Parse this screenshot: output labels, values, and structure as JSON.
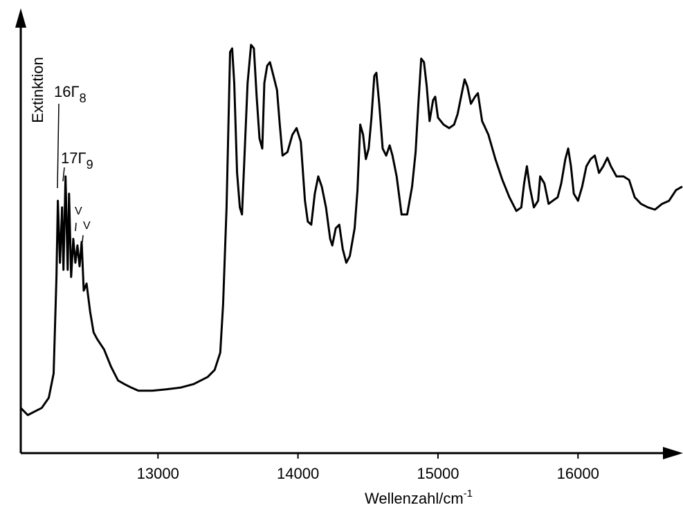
{
  "chart_data": {
    "type": "line",
    "xlabel": {
      "text": "Wellenzahl/cm",
      "sup": "-1"
    },
    "ylabel": "Extinktion",
    "annotations": [
      {
        "text": "16Γ",
        "sub": "8"
      },
      {
        "text": "17Γ",
        "sub": "9"
      },
      {
        "text": "V"
      },
      {
        "text": "V"
      }
    ],
    "color": "#000000",
    "xlim": [
      12020,
      16750
    ],
    "ylim": [
      0,
      100
    ],
    "xticks": [
      13000,
      14000,
      15000,
      16000
    ],
    "x": [
      12020,
      12070,
      12120,
      12170,
      12220,
      12255,
      12275,
      12285,
      12300,
      12315,
      12325,
      12340,
      12355,
      12365,
      12380,
      12395,
      12410,
      12425,
      12440,
      12455,
      12470,
      12490,
      12515,
      12540,
      12565,
      12615,
      12665,
      12715,
      12760,
      12810,
      12860,
      12960,
      13060,
      13160,
      13255,
      13355,
      13405,
      13445,
      13465,
      13490,
      13515,
      13530,
      13545,
      13565,
      13585,
      13600,
      13615,
      13640,
      13665,
      13685,
      13705,
      13725,
      13745,
      13760,
      13780,
      13800,
      13825,
      13850,
      13870,
      13890,
      13925,
      13960,
      13990,
      14020,
      14050,
      14070,
      14095,
      14120,
      14145,
      14170,
      14200,
      14230,
      14245,
      14270,
      14295,
      14320,
      14345,
      14370,
      14405,
      14425,
      14445,
      14465,
      14485,
      14505,
      14525,
      14545,
      14560,
      14580,
      14605,
      14630,
      14655,
      14675,
      14705,
      14740,
      14780,
      14815,
      14840,
      14860,
      14880,
      14900,
      14920,
      14940,
      14965,
      14980,
      15000,
      15040,
      15080,
      15115,
      15140,
      15165,
      15190,
      15210,
      15235,
      15265,
      15285,
      15315,
      15360,
      15410,
      15460,
      15510,
      15560,
      15595,
      15615,
      15635,
      15655,
      15685,
      15715,
      15730,
      15760,
      15790,
      15820,
      15855,
      15880,
      15910,
      15930,
      15950,
      15970,
      16000,
      16030,
      16060,
      16090,
      16120,
      16150,
      16180,
      16210,
      16235,
      16275,
      16325,
      16365,
      16405,
      16450,
      16500,
      16550,
      16600,
      16650,
      16700,
      16745
    ],
    "values": [
      10.2,
      8.6,
      9.4,
      10.2,
      12.5,
      18.0,
      39.8,
      57.0,
      43.0,
      55.5,
      41.4,
      62.5,
      41.4,
      58.6,
      39.8,
      48.4,
      43.0,
      46.9,
      42.2,
      47.7,
      36.7,
      38.3,
      32.0,
      27.3,
      25.8,
      23.4,
      19.5,
      16.4,
      15.6,
      14.8,
      14.1,
      14.1,
      14.4,
      14.8,
      15.6,
      17.2,
      18.8,
      22.7,
      33.6,
      55.5,
      90.6,
      91.4,
      83.6,
      63.3,
      55.5,
      53.9,
      64.8,
      83.6,
      92.2,
      91.4,
      80.5,
      71.1,
      68.8,
      83.6,
      87.5,
      88.3,
      85.2,
      82.0,
      74.2,
      67.2,
      68.0,
      71.9,
      73.4,
      70.3,
      57.0,
      52.3,
      51.6,
      58.6,
      62.5,
      60.2,
      55.5,
      48.4,
      46.9,
      50.8,
      51.6,
      46.1,
      43.0,
      44.5,
      50.8,
      59.4,
      74.2,
      71.9,
      66.4,
      68.8,
      75.8,
      85.2,
      85.9,
      78.9,
      68.8,
      67.2,
      69.5,
      67.2,
      62.5,
      53.9,
      53.9,
      60.2,
      68.0,
      78.9,
      89.1,
      88.3,
      82.8,
      75.0,
      79.7,
      80.5,
      75.8,
      74.2,
      73.4,
      74.2,
      76.6,
      80.5,
      84.4,
      82.8,
      78.9,
      80.5,
      81.3,
      75.0,
      71.9,
      66.4,
      61.7,
      57.8,
      54.7,
      55.5,
      60.9,
      64.8,
      60.2,
      55.5,
      57.0,
      62.5,
      60.9,
      56.3,
      57.0,
      57.8,
      60.9,
      66.4,
      68.8,
      64.8,
      58.6,
      57.0,
      60.2,
      64.8,
      66.4,
      67.2,
      63.3,
      64.8,
      66.7,
      64.8,
      62.5,
      62.5,
      61.7,
      57.8,
      56.3,
      55.5,
      55.0,
      56.3,
      57.0,
      59.4,
      60.2
    ]
  }
}
